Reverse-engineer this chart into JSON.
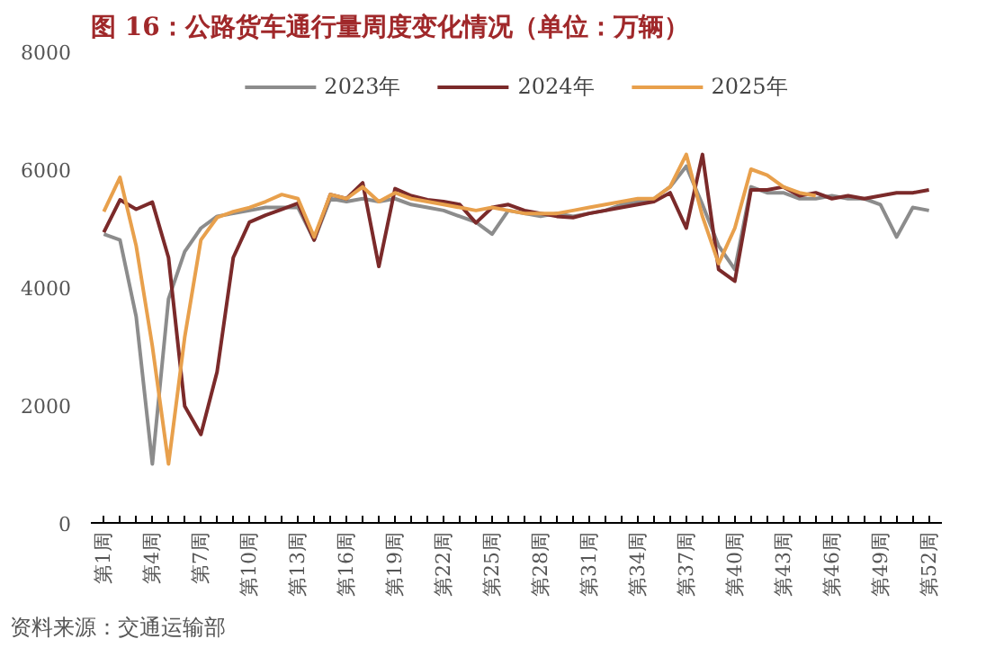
{
  "chart_data": {
    "type": "line",
    "title": "图 16：公路货车通行量周度变化情况（单位：万辆）",
    "categories": [
      "第1周",
      null,
      null,
      "第4周",
      null,
      null,
      "第7周",
      null,
      null,
      "第10周",
      null,
      null,
      "第13周",
      null,
      null,
      "第16周",
      null,
      null,
      "第19周",
      null,
      null,
      "第22周",
      null,
      null,
      "第25周",
      null,
      null,
      "第28周",
      null,
      null,
      "第31周",
      null,
      null,
      "第34周",
      null,
      null,
      "第37周",
      null,
      null,
      "第40周",
      null,
      null,
      "第43周",
      null,
      null,
      "第46周",
      null,
      null,
      "第49周",
      null,
      null,
      "第52周"
    ],
    "series": [
      {
        "name": "2023年",
        "color": "#8c8c8c",
        "values": [
          4900,
          4800,
          3500,
          1000,
          3800,
          4600,
          5000,
          5200,
          5250,
          5300,
          5350,
          5350,
          5350,
          4800,
          5500,
          5450,
          5500,
          5450,
          5500,
          5400,
          5350,
          5300,
          5200,
          5100,
          4900,
          5300,
          5250,
          5200,
          5250,
          5200,
          5250,
          5300,
          5400,
          5450,
          5500,
          5700,
          6050,
          5400,
          4700,
          4300,
          5700,
          5600,
          5600,
          5500,
          5500,
          5550,
          5500,
          5500,
          5400,
          4850,
          5350,
          5300
        ]
      },
      {
        "name": "2024年",
        "color": "#7b2a2a",
        "values": [
          4930,
          5480,
          5320,
          5440,
          4500,
          1980,
          1500,
          2560,
          4500,
          5100,
          5220,
          5320,
          5420,
          4800,
          5570,
          5500,
          5770,
          4350,
          5670,
          5550,
          5480,
          5450,
          5400,
          5090,
          5350,
          5400,
          5300,
          5250,
          5200,
          5180,
          5250,
          5300,
          5350,
          5400,
          5450,
          5600,
          5000,
          6250,
          4300,
          4100,
          5650,
          5650,
          5700,
          5550,
          5600,
          5500,
          5550,
          5500,
          5550,
          5600,
          5600,
          5650
        ]
      },
      {
        "name": "2025年",
        "color": "#e8a04c",
        "values": [
          5280,
          5860,
          4700,
          3000,
          1000,
          3150,
          4800,
          5180,
          5280,
          5350,
          5450,
          5570,
          5500,
          4850,
          5570,
          5500,
          5700,
          5450,
          5600,
          5500,
          5450,
          5400,
          5350,
          5300,
          5350,
          5300,
          5250,
          5250,
          5250,
          5300,
          5350,
          5400,
          5450,
          5500,
          5500,
          5700,
          6250,
          5200,
          4400,
          5000,
          6000,
          5900,
          5700,
          5600,
          5550,
          null,
          null,
          null,
          null,
          null,
          null,
          null
        ]
      }
    ],
    "ylim": [
      0,
      8000
    ],
    "yticks": [
      0,
      2000,
      4000,
      6000,
      8000
    ],
    "grid": false,
    "legend": "top",
    "annotations": [
      "资料来源：交通运输部"
    ]
  }
}
